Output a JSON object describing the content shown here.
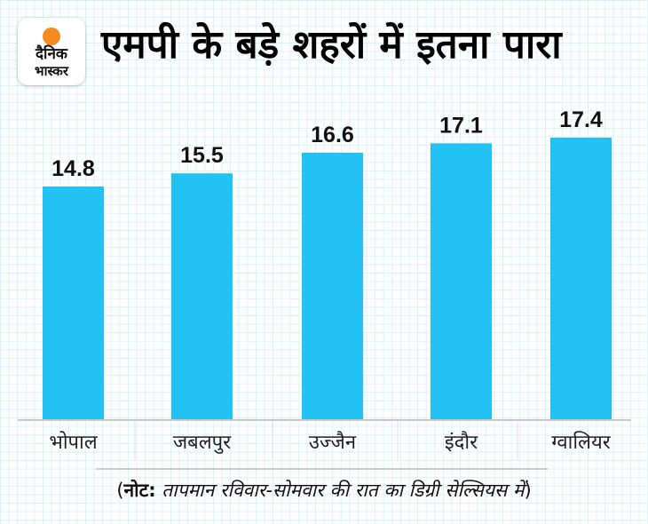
{
  "logo": {
    "line1": "दैनिक",
    "line2": "भास्कर",
    "icon": "sun-dot-icon",
    "accent": "#f58a20"
  },
  "title": "एमपी के बड़े शहरों में इतना पारा",
  "note": {
    "open": "(",
    "label": "नोट:",
    "text": " तापमान रविवार-सोमवार की रात का डिग्री सेल्सियस में",
    "close": ")"
  },
  "colors": {
    "bar": "#22c3f4",
    "axis": "#c8c8c8",
    "grid": "#dcf0fa"
  },
  "chart_data": {
    "type": "bar",
    "title": "एमपी के बड़े शहरों में इतना पारा",
    "xlabel": "",
    "ylabel": "",
    "categories": [
      "भोपाल",
      "जबलपुर",
      "उज्जैन",
      "इंदौर",
      "ग्वालियर"
    ],
    "values": [
      14.8,
      15.5,
      16.6,
      17.1,
      17.4
    ],
    "value_labels": [
      "14.8",
      "15.5",
      "16.6",
      "17.1",
      "17.4"
    ],
    "unit": "डिग्री सेल्सियस",
    "grid": true,
    "legend": "none"
  }
}
